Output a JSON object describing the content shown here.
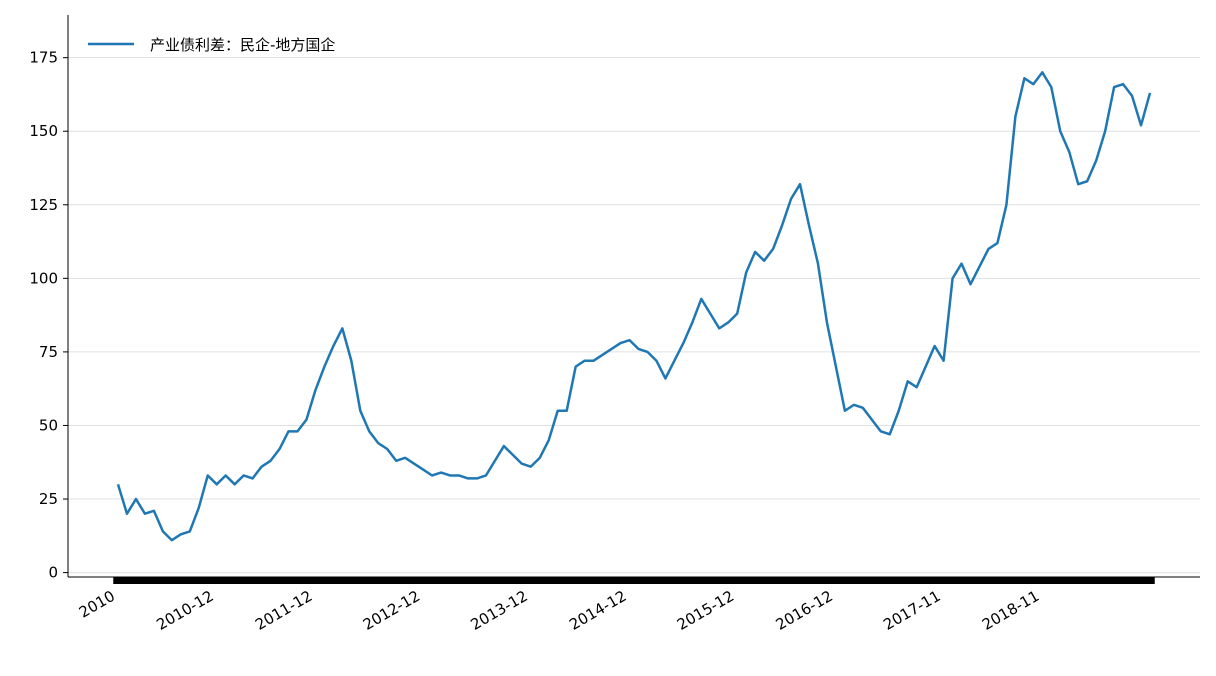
{
  "chart_data": {
    "type": "line",
    "categories": [
      "2010",
      null,
      null,
      null,
      null,
      null,
      null,
      null,
      null,
      null,
      null,
      "2010-12",
      null,
      null,
      null,
      null,
      null,
      null,
      null,
      null,
      null,
      null,
      "2011-12",
      null,
      null,
      null,
      null,
      null,
      null,
      null,
      null,
      null,
      null,
      null,
      "2012-12",
      null,
      null,
      null,
      null,
      null,
      null,
      null,
      null,
      null,
      null,
      null,
      "2013-12",
      null,
      null,
      null,
      null,
      null,
      null,
      null,
      null,
      null,
      null,
      "2014-12",
      null,
      null,
      null,
      null,
      null,
      null,
      null,
      null,
      null,
      null,
      null,
      "2015-12",
      null,
      null,
      null,
      null,
      null,
      null,
      null,
      null,
      null,
      null,
      "2016-12",
      null,
      null,
      null,
      null,
      null,
      null,
      null,
      null,
      null,
      null,
      null,
      "2017-11",
      null,
      null,
      null,
      null,
      null,
      null,
      null,
      null,
      null,
      null,
      "2018-11",
      null,
      null,
      null,
      null,
      null,
      null,
      null,
      null,
      null,
      null,
      null,
      null
    ],
    "series": [
      {
        "name": "产业债利差：民企-地方国企",
        "color": "#1f77b4",
        "values": [
          30,
          20,
          25,
          20,
          21,
          14,
          11,
          13,
          14,
          22,
          33,
          30,
          33,
          30,
          33,
          32,
          36,
          38,
          42,
          48,
          48,
          52,
          62,
          70,
          77,
          83,
          72,
          55,
          48,
          44,
          42,
          38,
          39,
          37,
          35,
          33,
          34,
          33,
          33,
          32,
          32,
          33,
          38,
          43,
          40,
          37,
          36,
          39,
          45,
          55,
          55,
          70,
          72,
          72,
          74,
          76,
          78,
          79,
          76,
          75,
          72,
          66,
          72,
          78,
          85,
          93,
          88,
          83,
          85,
          88,
          102,
          109,
          106,
          110,
          118,
          127,
          132,
          118,
          105,
          85,
          70,
          55,
          57,
          56,
          52,
          48,
          47,
          55,
          65,
          63,
          70,
          77,
          72,
          100,
          105,
          98,
          104,
          110,
          112,
          125,
          155,
          168,
          166,
          170,
          165,
          150,
          143,
          132,
          133,
          140,
          150,
          165,
          166,
          162,
          152,
          163
        ]
      }
    ],
    "ylim": [
      -1.5,
      189.5
    ],
    "yticks": [
      0,
      25,
      50,
      75,
      100,
      125,
      150,
      175
    ],
    "grid": true,
    "legend": "upper left"
  }
}
